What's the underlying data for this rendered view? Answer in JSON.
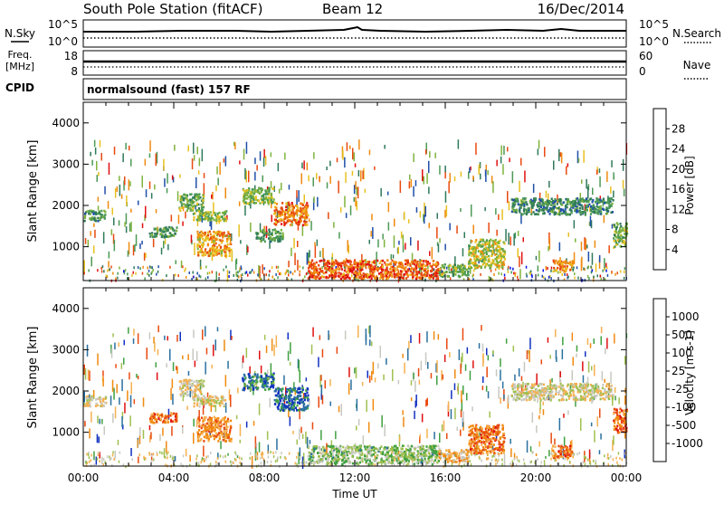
{
  "header": {
    "station": "South Pole Station (fitACF)",
    "beam": "Beam 12",
    "date": "16/Dec/2014"
  },
  "strip_labels": {
    "nsky": "N.Sky",
    "nsearch": "N.Search",
    "freq": "Freq.",
    "freq_unit": "[MHz]",
    "nave": "Nave",
    "cpid": "CPID",
    "cpid_value": "normalsound (fast) 157 RF",
    "noise_top": "10^5",
    "noise_bottom": "10^0",
    "freq_top": "18",
    "freq_bottom": "8",
    "nave_top": "60",
    "nave_bottom": "0"
  },
  "colors": {
    "power": [
      "#0a14e6",
      "#1f4fa8",
      "#2f7a5a",
      "#4d9a55",
      "#7fb33d",
      "#e8c020",
      "#f08a10",
      "#e84a10",
      "#e01010"
    ],
    "velocity": [
      "#e01010",
      "#e84a10",
      "#f08a10",
      "#f5b050",
      "#c8c8c0",
      "#a0c050",
      "#40a040",
      "#2a70a0",
      "#1030c0"
    ]
  },
  "chart_data": [
    {
      "type": "heatmap",
      "name": "power",
      "xlabel": "",
      "ylabel": "Slant Range [km]",
      "xlim": [
        0,
        24
      ],
      "ylim": [
        180,
        4500
      ],
      "yticks": [
        "1000",
        "2000",
        "3000",
        "4000"
      ],
      "colorbar": {
        "label": "Power [dB]",
        "ticks": [
          "28",
          "24",
          "20",
          "16",
          "12",
          "8",
          "4"
        ],
        "range": [
          0,
          30
        ]
      },
      "regions": [
        {
          "t0": 0.0,
          "t1": 1.0,
          "r0": 1650,
          "r1": 1900,
          "level": 0.35
        },
        {
          "t0": 2.9,
          "t1": 4.1,
          "r0": 1250,
          "r1": 1500,
          "level": 0.35
        },
        {
          "t0": 4.2,
          "t1": 5.3,
          "r0": 1900,
          "r1": 2300,
          "level": 0.45
        },
        {
          "t0": 4.8,
          "t1": 6.3,
          "r0": 1650,
          "r1": 1900,
          "level": 0.5
        },
        {
          "t0": 5.0,
          "t1": 6.5,
          "r0": 800,
          "r1": 1400,
          "level": 0.7
        },
        {
          "t0": 7.0,
          "t1": 8.4,
          "r0": 2050,
          "r1": 2450,
          "level": 0.5
        },
        {
          "t0": 8.4,
          "t1": 9.9,
          "r0": 1550,
          "r1": 2100,
          "level": 0.8
        },
        {
          "t0": 7.6,
          "t1": 8.8,
          "r0": 1150,
          "r1": 1450,
          "level": 0.35
        },
        {
          "t0": 9.9,
          "t1": 15.7,
          "r0": 250,
          "r1": 700,
          "level": 0.85
        },
        {
          "t0": 15.7,
          "t1": 17.0,
          "r0": 300,
          "r1": 600,
          "level": 0.45
        },
        {
          "t0": 17.0,
          "t1": 18.6,
          "r0": 500,
          "r1": 1200,
          "level": 0.55
        },
        {
          "t0": 18.9,
          "t1": 23.4,
          "r0": 1800,
          "r1": 2200,
          "level": 0.3
        },
        {
          "t0": 20.7,
          "t1": 21.6,
          "r0": 400,
          "r1": 700,
          "level": 0.75
        },
        {
          "t0": 23.4,
          "t1": 24.0,
          "r0": 1000,
          "r1": 1600,
          "level": 0.45
        }
      ]
    },
    {
      "type": "heatmap",
      "name": "velocity",
      "xlabel": "Time UT",
      "ylabel": "Slant Range [km]",
      "xlim": [
        0,
        24
      ],
      "ylim": [
        180,
        4500
      ],
      "xticks": [
        "00:00",
        "04:00",
        "08:00",
        "12:00",
        "16:00",
        "20:00",
        "00:00"
      ],
      "yticks": [
        "1000",
        "2000",
        "3000",
        "4000"
      ],
      "colorbar": {
        "label": "Velocity [m s-1]",
        "ticks": [
          "1000",
          "500",
          "100",
          "25",
          "-25",
          "-100",
          "-500",
          "-1000"
        ],
        "range": [
          -1000,
          1000
        ]
      },
      "regions": [
        {
          "t0": 0.0,
          "t1": 1.0,
          "r0": 1650,
          "r1": 1900,
          "level": 0.5
        },
        {
          "t0": 2.9,
          "t1": 4.1,
          "r0": 1250,
          "r1": 1500,
          "level": 0.2
        },
        {
          "t0": 4.2,
          "t1": 5.3,
          "r0": 1900,
          "r1": 2300,
          "level": 0.5
        },
        {
          "t0": 4.8,
          "t1": 6.3,
          "r0": 1650,
          "r1": 1900,
          "level": 0.5
        },
        {
          "t0": 5.0,
          "t1": 6.5,
          "r0": 800,
          "r1": 1400,
          "level": 0.25
        },
        {
          "t0": 7.0,
          "t1": 8.4,
          "r0": 2050,
          "r1": 2450,
          "level": 0.85
        },
        {
          "t0": 8.4,
          "t1": 9.9,
          "r0": 1550,
          "r1": 2100,
          "level": 0.9
        },
        {
          "t0": 9.9,
          "t1": 15.7,
          "r0": 250,
          "r1": 700,
          "level": 0.65
        },
        {
          "t0": 15.7,
          "t1": 17.0,
          "r0": 300,
          "r1": 600,
          "level": 0.35
        },
        {
          "t0": 17.0,
          "t1": 18.6,
          "r0": 500,
          "r1": 1200,
          "level": 0.2
        },
        {
          "t0": 18.9,
          "t1": 23.4,
          "r0": 1800,
          "r1": 2200,
          "level": 0.5
        },
        {
          "t0": 20.7,
          "t1": 21.6,
          "r0": 400,
          "r1": 700,
          "level": 0.2
        },
        {
          "t0": 23.4,
          "t1": 24.0,
          "r0": 1000,
          "r1": 1600,
          "level": 0.15
        }
      ]
    }
  ]
}
